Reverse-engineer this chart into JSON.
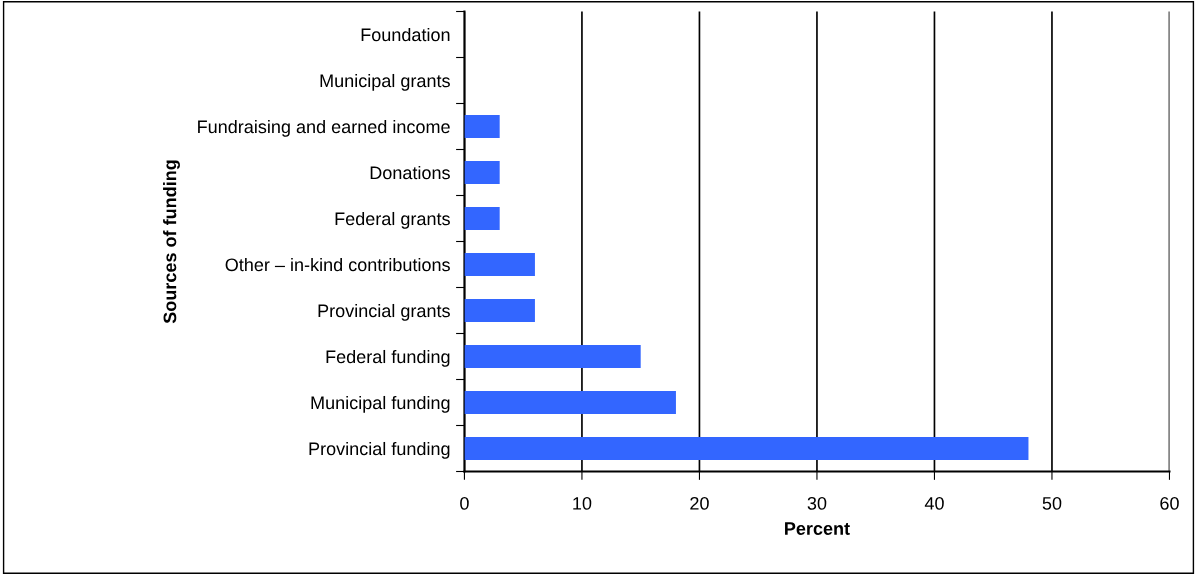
{
  "chart_data": {
    "type": "bar",
    "orientation": "horizontal",
    "xlabel": "Percent",
    "ylabel": "Sources of funding",
    "categories": [
      "Foundation",
      "Municipal grants",
      "Fundraising and earned income",
      "Donations",
      "Federal grants",
      "Other – in-kind contributions",
      "Provincial grants",
      "Federal funding",
      "Municipal funding",
      "Provincial funding"
    ],
    "values": [
      0,
      0,
      3,
      3,
      3,
      6,
      6,
      15,
      18,
      48
    ],
    "color": "#3366ff",
    "xlim": [
      0,
      60
    ],
    "xticks": [
      0,
      10,
      20,
      30,
      40,
      50,
      60
    ],
    "grid": "x",
    "legend": false
  }
}
